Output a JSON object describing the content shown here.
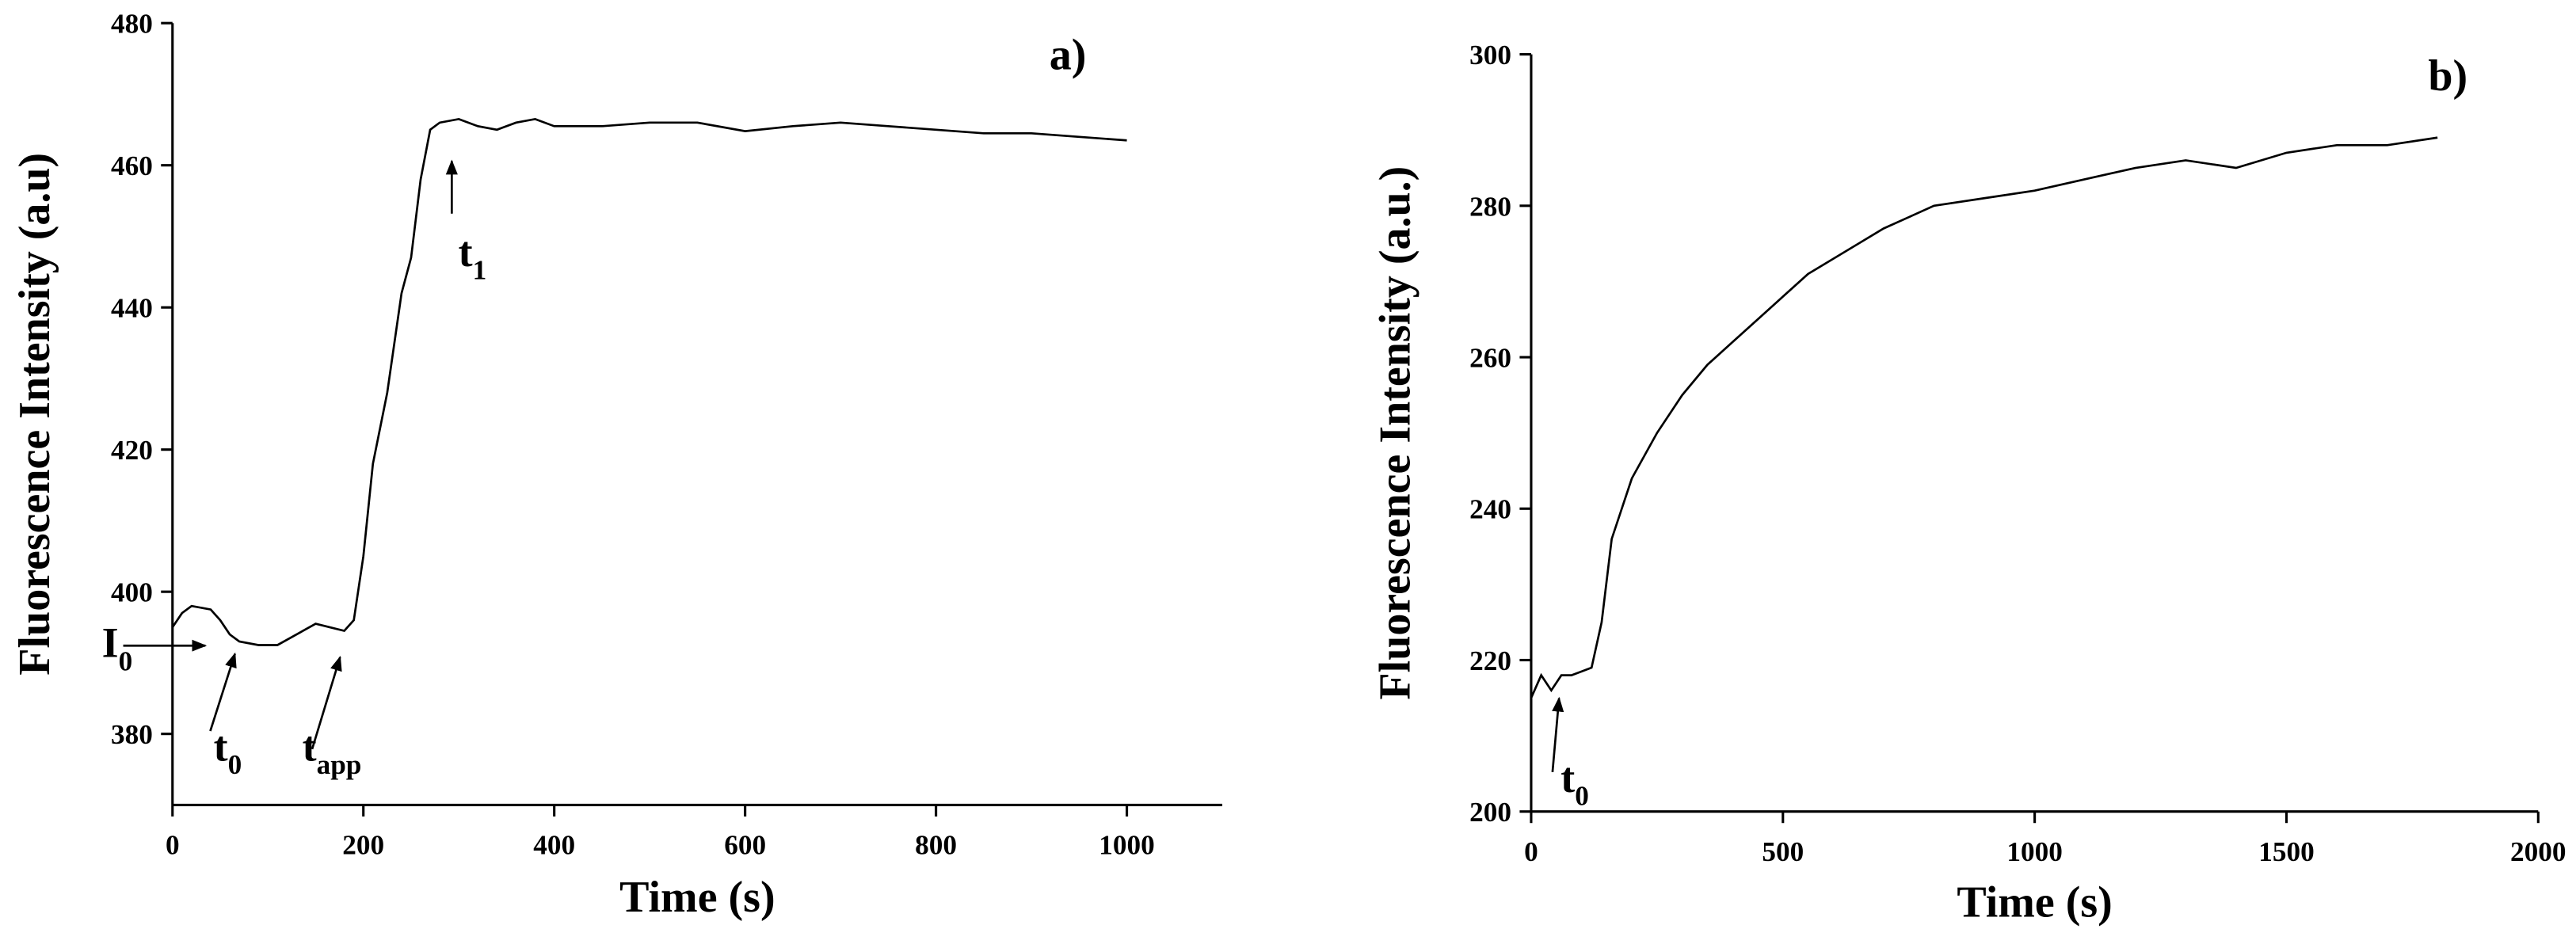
{
  "chart_data": [
    {
      "type": "line",
      "title": "a)",
      "x_label": "Time (s)",
      "y_label": "Fluorescence Intensity (a.u)",
      "xlim": [
        0,
        1100
      ],
      "xticks": [
        0,
        200,
        400,
        600,
        800,
        1000
      ],
      "ylim": [
        370,
        480
      ],
      "yticks": [
        380,
        400,
        420,
        440,
        460,
        480
      ],
      "color": "#000000",
      "x": [
        0,
        10,
        20,
        40,
        50,
        60,
        70,
        90,
        110,
        130,
        150,
        165,
        180,
        190,
        200,
        210,
        225,
        240,
        250,
        260,
        270,
        280,
        300,
        320,
        340,
        360,
        380,
        400,
        450,
        500,
        550,
        600,
        650,
        700,
        750,
        800,
        850,
        900,
        950,
        1000
      ],
      "values": [
        395,
        397,
        398,
        397.5,
        396,
        394,
        393,
        392.5,
        392.5,
        394,
        395.5,
        395,
        394.5,
        396,
        405,
        418,
        428,
        442,
        447,
        458,
        465,
        466,
        466.5,
        465.5,
        465,
        466,
        466.5,
        465.5,
        465.5,
        466,
        466,
        464.8,
        465.5,
        466,
        465.5,
        465,
        464.5,
        464.5,
        464,
        463.5
      ],
      "annotations": [
        {
          "text": "I",
          "sub": "0"
        },
        {
          "text": "t",
          "sub": "0"
        },
        {
          "text": "t",
          "sub": "app"
        },
        {
          "text": "t",
          "sub": "1"
        }
      ]
    },
    {
      "type": "line",
      "title": "b)",
      "x_label": "Time (s)",
      "y_label": "Fluorescence Intensity (a.u.)",
      "xlim": [
        0,
        2000
      ],
      "xticks": [
        0,
        500,
        1000,
        1500,
        2000
      ],
      "ylim": [
        200,
        300
      ],
      "yticks": [
        200,
        220,
        240,
        260,
        280,
        300
      ],
      "color": "#000000",
      "x": [
        0,
        20,
        40,
        60,
        80,
        100,
        120,
        140,
        160,
        180,
        200,
        250,
        300,
        350,
        400,
        450,
        500,
        550,
        600,
        650,
        700,
        750,
        800,
        900,
        1000,
        1100,
        1200,
        1300,
        1400,
        1500,
        1600,
        1700,
        1800
      ],
      "values": [
        215,
        218,
        216,
        218,
        218,
        218.5,
        219,
        225,
        236,
        240,
        244,
        250,
        255,
        259,
        262,
        265,
        268,
        271,
        273,
        275,
        277,
        278.5,
        280,
        281,
        282,
        283.5,
        285,
        286,
        285,
        287,
        288,
        288,
        289
      ],
      "annotations": [
        {
          "text": "t",
          "sub": "0"
        }
      ]
    }
  ]
}
